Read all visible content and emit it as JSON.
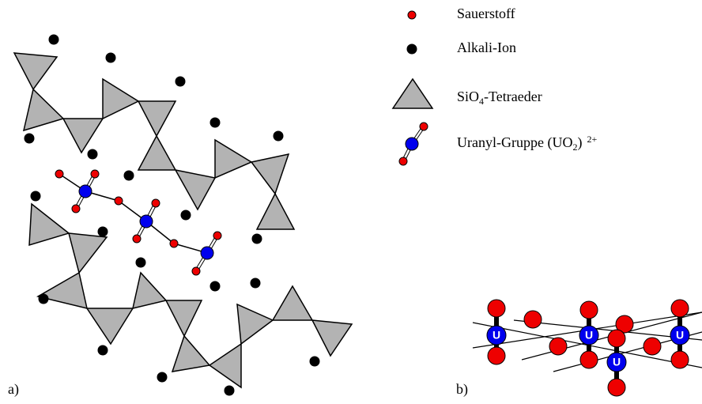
{
  "legend": [
    {
      "label": "Sauerstoff"
    },
    {
      "label": "Alkali-Ion"
    },
    {
      "label_parts": [
        "SiO",
        "4",
        "-Tetraeder"
      ]
    },
    {
      "label_parts": [
        "Uranyl-Gruppe (UO",
        "2",
        ")",
        "2+"
      ]
    }
  ],
  "panel_labels": [
    "a)",
    "b)"
  ],
  "uranium_labels": [
    "U",
    "U",
    "U",
    "U"
  ]
}
